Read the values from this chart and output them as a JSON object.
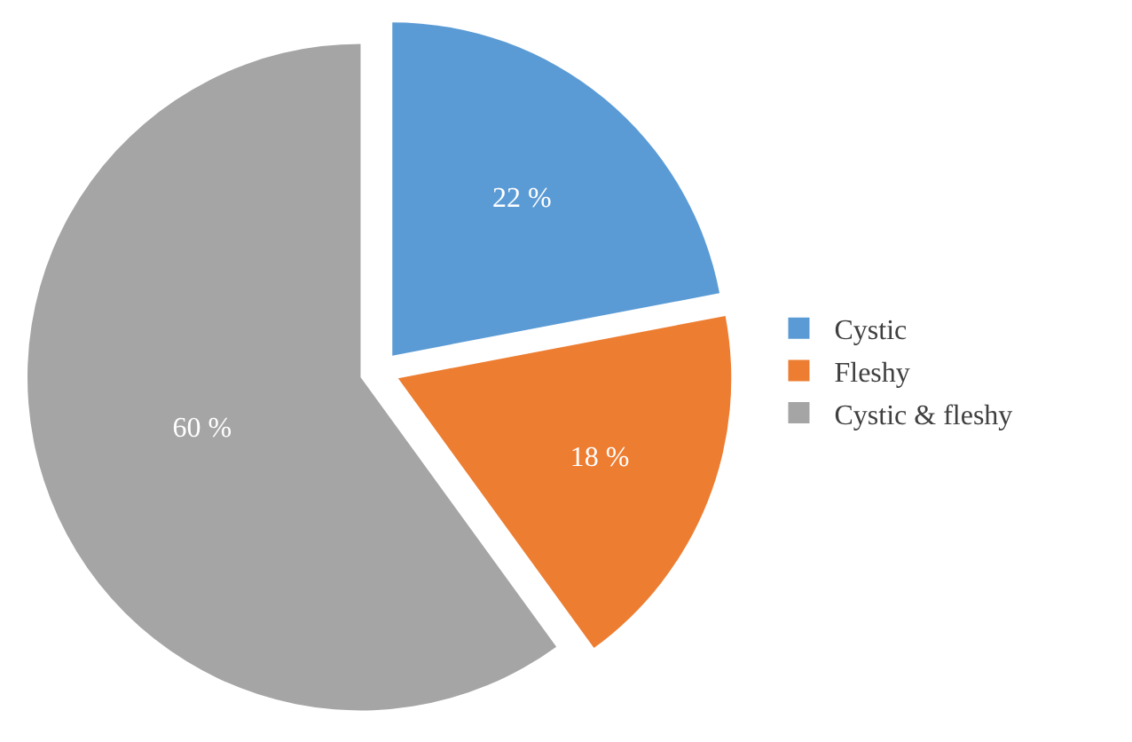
{
  "chart_data": {
    "type": "pie",
    "categories": [
      "Cystic",
      "Fleshy",
      "Cystic & fleshy"
    ],
    "values": [
      22,
      18,
      60
    ],
    "colors": [
      "#5b9bd5",
      "#ed7d31",
      "#a5a5a5"
    ],
    "value_labels": [
      "22 %",
      "18 %",
      "60 %"
    ],
    "legend": "right"
  }
}
